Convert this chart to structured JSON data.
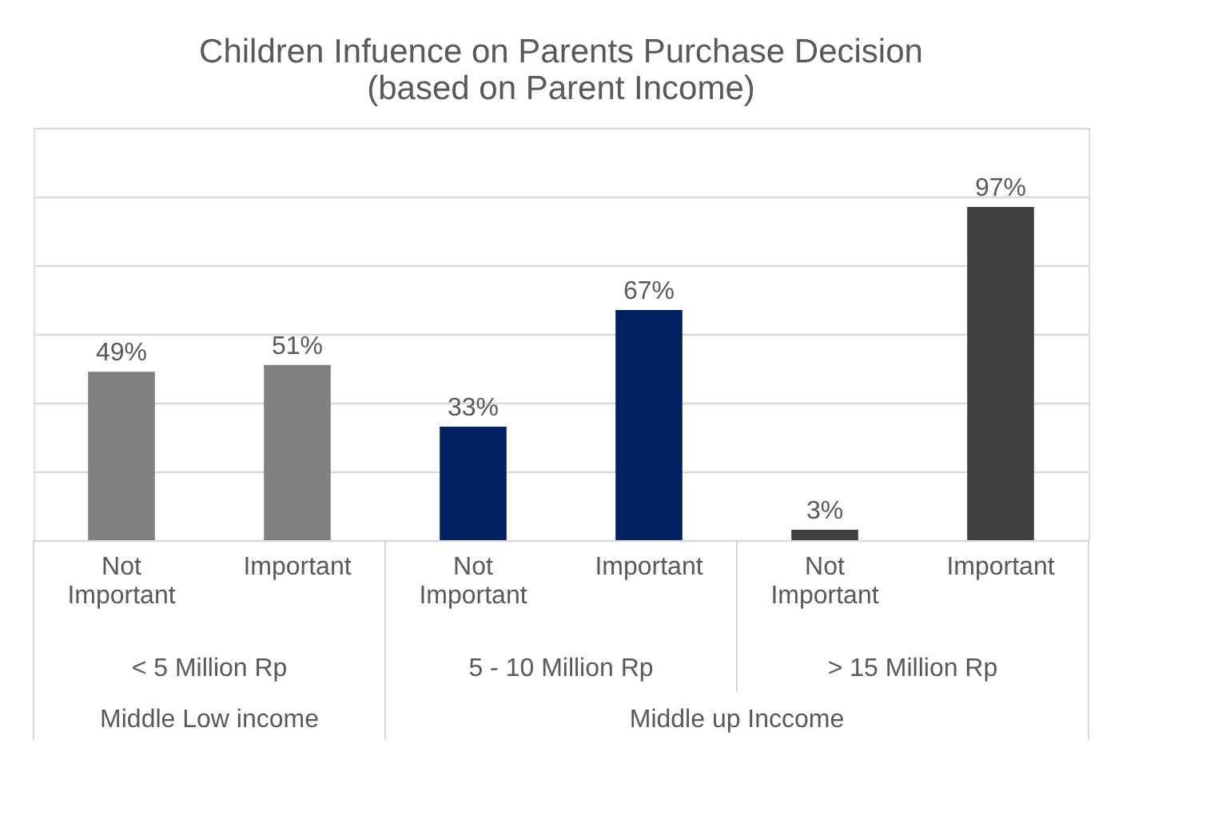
{
  "chart_data": {
    "type": "bar",
    "title": "Children Infuence on Parents Purchase Decision\n(based on Parent Income)",
    "categories": [
      "Not Important",
      "Important",
      "Not Important",
      "Important",
      "Not Important",
      "Important"
    ],
    "values": [
      49,
      51,
      33,
      67,
      3,
      97
    ],
    "value_labels": [
      "49%",
      "51%",
      "33%",
      "67%",
      "3%",
      "97%"
    ],
    "colors": [
      "#808080",
      "#808080",
      "#002060",
      "#002060",
      "#404040",
      "#404040"
    ],
    "ylim": [
      0,
      120
    ],
    "yticks": [
      {
        "value": 0,
        "label": null
      },
      {
        "value": 20,
        "label": null
      },
      {
        "value": 40,
        "label": null
      },
      {
        "value": 60,
        "label": null
      },
      {
        "value": 80,
        "label": null
      },
      {
        "value": 100,
        "label": null
      },
      {
        "value": 120,
        "label": null
      }
    ],
    "tick_labels": "x",
    "grid": "y",
    "annotations": [
      "< 5 Million Rp",
      "5 - 10 Million Rp",
      "> 15 Million Rp",
      "Middle Low income",
      "Middle up Inccome"
    ]
  }
}
